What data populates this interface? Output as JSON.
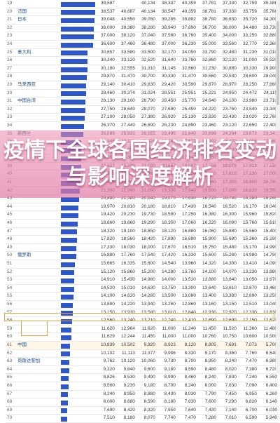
{
  "title": "疫情下全球各国经济排名变动与影响深度解析",
  "table": {
    "rows": [
      {
        "rank": "19",
        "name": "",
        "bar": 0.99,
        "vals": [
          "39,587",
          "",
          "40,134",
          "38,347",
          "40,359",
          "37,781",
          "37,330",
          "32,759",
          "35,186"
        ]
      },
      {
        "rank": "20",
        "name": "法国",
        "bar": 0.98,
        "vals": [
          "38,537",
          "40,687",
          "40,134",
          "38,547",
          "40,359",
          "38,781",
          "37,330",
          "35,759",
          "35,768"
        ]
      },
      {
        "rank": "21",
        "name": "日本",
        "bar": 0.97,
        "vals": [
          "39,048",
          "40,550",
          "39,050",
          "39,285",
          "39,882",
          "38,780",
          "36,830",
          "35,720",
          "34,300"
        ]
      },
      {
        "rank": "22",
        "name": "",
        "bar": 0.95,
        "vals": [
          "38,000",
          "39,380",
          "38,280",
          "38,940",
          "37,890",
          "36,700",
          "36,000",
          "34,480",
          "33,730"
        ]
      },
      {
        "rank": "23",
        "name": "",
        "bar": 0.94,
        "vals": [
          "37,000",
          "38,120",
          "37,040",
          "37,560",
          "36,760",
          "35,400",
          "34,000",
          "33,250",
          "32,880"
        ]
      },
      {
        "rank": "24",
        "name": "",
        "bar": 0.93,
        "vals": [
          "36,600",
          "37,460",
          "36,480",
          "37,000",
          "36,230",
          "35,000",
          "33,560",
          "32,770",
          "32,360"
        ]
      },
      {
        "rank": "25",
        "name": "意大利",
        "bar": 0.76,
        "vals": [
          "30,657",
          "33,580",
          "33,500",
          "32,170",
          "34,050",
          "33,790",
          "32,480",
          "31,230",
          "31,010"
        ]
      },
      {
        "rank": "26",
        "name": "",
        "bar": 0.76,
        "vals": [
          "30,340",
          "33,120",
          "32,520",
          "31,640",
          "33,780",
          "32,860",
          "32,120",
          "31,000",
          "30,520"
        ]
      },
      {
        "rank": "27",
        "name": "",
        "bar": 0.76,
        "vals": [
          "30,180",
          "32,555",
          "31,310",
          "31,145",
          "32,660",
          "31,230",
          "30,880",
          "30,330",
          "29,900"
        ]
      },
      {
        "rank": "28",
        "name": "",
        "bar": 0.74,
        "vals": [
          "29,870",
          "31,470",
          "30,700",
          "30,330",
          "31,470",
          "30,560",
          "29,530",
          "28,600",
          "28,040"
        ]
      },
      {
        "rank": "29",
        "name": "马来西亚",
        "bar": 0.72,
        "vals": [
          "29,140",
          "30,410",
          "29,830",
          "29,420",
          "30,560",
          "29,870",
          "28,970",
          "28,250",
          "27,660"
        ]
      },
      {
        "rank": "30",
        "name": "",
        "bar": 0.71,
        "vals": [
          "28,460",
          "30,374",
          "31,024",
          "28,551",
          "25,951",
          "25,221",
          "24,950",
          "24,472",
          "24,115"
        ]
      },
      {
        "rank": "31",
        "name": "中国台湾",
        "bar": 0.7,
        "vals": [
          "28,130",
          "29,100",
          "28,790",
          "28,450",
          "25,770",
          "24,640",
          "24,100",
          "23,980",
          "23,710"
        ]
      },
      {
        "rank": "32",
        "name": "",
        "bar": 0.69,
        "vals": [
          "27,750",
          "28,640",
          "28,070",
          "27,690",
          "25,450",
          "24,220",
          "23,760",
          "23,540",
          "23,340"
        ]
      },
      {
        "rank": "33",
        "name": "",
        "bar": 0.68,
        "vals": [
          "27,100",
          "28,050",
          "27,380",
          "26,920",
          "25,130",
          "23,830",
          "23,430",
          "23,020",
          "22,760"
        ]
      },
      {
        "rank": "34",
        "name": "",
        "bar": 0.66,
        "vals": [
          "26,370",
          "27,440",
          "26,690",
          "26,230",
          "24,890",
          "23,460",
          "23,120",
          "22,650",
          "22,400"
        ]
      },
      {
        "rank": "35",
        "name": "新西兰",
        "bar": 0.63,
        "vals": [
          "25,089",
          "25,932",
          "26,555",
          "23,495",
          "21,640",
          "20,899",
          "24,264",
          "23,673",
          "23,341"
        ]
      },
      {
        "rank": "36",
        "name": "",
        "bar": 0.58,
        "vals": [
          "22,946",
          "22,178",
          "20,624",
          "18,466",
          "17,671",
          "18,092",
          "18,470",
          "18,008",
          "17,560"
        ]
      },
      {
        "rank": "37",
        "name": "",
        "bar": 0.58,
        "vals": [
          "22,760",
          "21,958",
          "19,900",
          "18,740",
          "17,580",
          "18,420",
          "19,000",
          "18,700",
          "18,450"
        ]
      },
      {
        "rank": "38",
        "name": "",
        "bar": 0.57,
        "vals": [
          "22,560",
          "21,800",
          "20,320",
          "18,680",
          "17,640",
          "17,560",
          "17,540",
          "18,970",
          "18,220"
        ]
      },
      {
        "rank": "39",
        "name": "",
        "bar": 0.57,
        "vals": [
          "22,627",
          "23,599",
          "23,020",
          "20,667",
          "18,587",
          "17,558",
          "18,078",
          "17,913",
          "17,150"
        ]
      },
      {
        "rank": "40",
        "name": "",
        "bar": 0.56,
        "vals": [
          "22,389",
          "22,834",
          "21,860",
          "19,850",
          "18,230",
          "17,250",
          "17,610",
          "17,130",
          "17,000"
        ]
      },
      {
        "rank": "41",
        "name": "",
        "bar": 0.55,
        "vals": [
          "21,920",
          "22,460",
          "21,480",
          "19,560",
          "18,060",
          "17,040",
          "17,300",
          "16,900",
          "16,760"
        ]
      },
      {
        "rank": "42",
        "name": "",
        "bar": 0.53,
        "vals": [
          "21,300",
          "21,960",
          "21,090",
          "19,330",
          "17,840",
          "16,900",
          "17,000",
          "16,620",
          "16,500"
        ]
      },
      {
        "rank": "43",
        "name": "",
        "bar": 0.51,
        "vals": [
          "20,480",
          "21,380",
          "20,640",
          "19,070",
          "17,630",
          "16,720",
          "16,740",
          "16,380",
          "16,260"
        ]
      },
      {
        "rank": "44",
        "name": "",
        "bar": 0.5,
        "vals": [
          "19,970",
          "20,810",
          "20,180",
          "18,810",
          "17,430",
          "16,540",
          "16,520",
          "16,170",
          "16,040"
        ]
      },
      {
        "rank": "45",
        "name": "",
        "bar": 0.49,
        "vals": [
          "19,420",
          "20,230",
          "19,730",
          "18,580",
          "17,250",
          "16,380",
          "16,300",
          "15,960",
          "15,820"
        ]
      },
      {
        "rank": "46",
        "name": "",
        "bar": 0.47,
        "vals": [
          "18,860",
          "19,660",
          "19,290",
          "18,350",
          "17,060",
          "16,220",
          "16,090",
          "15,760",
          "15,610"
        ]
      },
      {
        "rank": "47",
        "name": "",
        "bar": 0.46,
        "vals": [
          "18,320",
          "19,100",
          "18,850",
          "18,120",
          "16,880",
          "16,060",
          "15,880",
          "15,560",
          "15,400"
        ]
      },
      {
        "rank": "48",
        "name": "",
        "bar": 0.45,
        "vals": [
          "17,820",
          "18,560",
          "18,420",
          "17,890",
          "16,690",
          "15,900",
          "15,680",
          "15,360",
          "15,190"
        ]
      },
      {
        "rank": "49",
        "name": "",
        "bar": 0.44,
        "vals": [
          "17,330",
          "18,030",
          "18,000",
          "17,670",
          "16,510",
          "15,750",
          "15,480",
          "15,170",
          "14,990"
        ]
      },
      {
        "rank": "50",
        "name": "俄罗斯",
        "bar": 0.44,
        "vals": [
          "16,880",
          "17,760",
          "17,540",
          "17,420",
          "16,330",
          "15,600",
          "15,280",
          "14,980",
          "14,790"
        ]
      },
      {
        "rank": "51",
        "name": "",
        "bar": 0.39,
        "vals": [
          "15,665",
          "16,335",
          "15,600",
          "14,540",
          "13,960",
          "14,320",
          "14,300",
          "13,410",
          "14,090"
        ]
      },
      {
        "rank": "52",
        "name": "",
        "bar": 0.38,
        "vals": [
          "15,120",
          "15,860",
          "15,200",
          "14,280",
          "13,760",
          "14,100",
          "14,070",
          "13,230",
          "13,880"
        ]
      },
      {
        "rank": "53",
        "name": "",
        "bar": 0.38,
        "vals": [
          "14,910",
          "15,430",
          "14,980",
          "14,000",
          "13,520",
          "13,880",
          "13,840",
          "13,050",
          "13,670"
        ]
      },
      {
        "rank": "54",
        "name": "",
        "bar": 0.37,
        "vals": [
          "14,520",
          "15,010",
          "14,630",
          "13,750",
          "13,300",
          "13,640",
          "13,610",
          "12,870",
          "13,460"
        ]
      },
      {
        "rank": "55",
        "name": "",
        "bar": 0.36,
        "vals": [
          "14,100",
          "14,620",
          "14,280",
          "13,500",
          "13,080",
          "13,400",
          "13,380",
          "12,690",
          "13,250"
        ]
      },
      {
        "rank": "56",
        "name": "",
        "bar": 0.34,
        "vals": [
          "13,880",
          "14,220",
          "13,940",
          "13,260",
          "12,860",
          "13,160",
          "13,150",
          "12,510",
          "13,040"
        ]
      },
      {
        "rank": "57",
        "name": "",
        "bar": 0.33,
        "vals": [
          "13,150",
          "13,930",
          "13,580",
          "13,010",
          "12,640",
          "12,930",
          "12,920",
          "12,330",
          "12,830"
        ]
      },
      {
        "rank": "58",
        "name": "",
        "bar": 0.31,
        "vals": [
          "12,560",
          "13,240",
          "13,210",
          "12,740",
          "12,410",
          "12,690",
          "12,690",
          "12,150",
          "12,620"
        ]
      },
      {
        "rank": "59",
        "name": "",
        "bar": 0.29,
        "vals": [
          "11,620",
          "12,964",
          "11,620",
          "11,000",
          "11,240",
          "11,450",
          "11,520",
          "11,360",
          "11,480"
        ]
      },
      {
        "rank": "60",
        "name": "",
        "bar": 0.29,
        "vals": [
          "11,629",
          "12,244",
          "11,450",
          "11,000",
          "11,000",
          "10,760",
          "10,750",
          "10,600",
          "10,500"
        ]
      },
      {
        "rank": "61",
        "name": "中国",
        "bar": 0.26,
        "vals": [
          "10,839",
          "10,502",
          "9,920",
          "8,923",
          "8,120",
          "8,805",
          "7,691",
          "7,073",
          "5,700"
        ],
        "highlight": true
      },
      {
        "rank": "62",
        "name": "",
        "bar": 0.25,
        "vals": [
          "10,102",
          "11,113",
          "11,377",
          "9,986",
          "8,330",
          "9,170",
          "8,360",
          "7,760",
          "6,540"
        ]
      },
      {
        "rank": "63",
        "name": "哥斯达黎加",
        "bar": 0.24,
        "vals": [
          "9,762",
          "10,120",
          "10,060",
          "9,730",
          "8,700",
          "8,950",
          "8,240",
          "7,470",
          "6,980"
        ]
      },
      {
        "rank": "64",
        "name": "",
        "bar": 0.23,
        "vals": [
          "9,320",
          "9,640",
          "9,600",
          "9,180",
          "8,590",
          "8,480",
          "8,020",
          "7,380",
          "6,720"
        ]
      },
      {
        "rank": "65",
        "name": "",
        "bar": 0.22,
        "vals": [
          "8,826",
          "9,530",
          "9,490",
          "8,990",
          "8,460",
          "8,240",
          "7,830",
          "7,240",
          "6,550"
        ]
      },
      {
        "rank": "66",
        "name": "",
        "bar": 0.21,
        "vals": [
          "8,560",
          "9,230",
          "9,180",
          "8,700",
          "8,240",
          "8,000",
          "7,630",
          "7,090",
          "6,400"
        ]
      },
      {
        "rank": "67",
        "name": "",
        "bar": 0.2,
        "vals": [
          "8,240",
          "8,950",
          "8,880",
          "8,430",
          "8,030",
          "7,790",
          "7,450",
          "6,950",
          "6,260"
        ]
      },
      {
        "rank": "68",
        "name": "",
        "bar": 0.19,
        "vals": [
          "8,000",
          "8,680",
          "8,590",
          "8,180",
          "7,830",
          "7,600",
          "7,290",
          "6,820",
          "6,140"
        ]
      },
      {
        "rank": "69",
        "name": "",
        "bar": 0.18,
        "vals": [
          "7,690",
          "8,420",
          "8,320",
          "7,950",
          "7,640",
          "7,430",
          "7,140",
          "6,700",
          "6,030"
        ]
      },
      {
        "rank": "70",
        "name": "",
        "bar": 0.17,
        "vals": [
          "7,510",
          "8,180",
          "8,070",
          "7,740",
          "7,470",
          "7,280",
          "7,010",
          "6,590",
          "5,940"
        ]
      }
    ]
  }
}
